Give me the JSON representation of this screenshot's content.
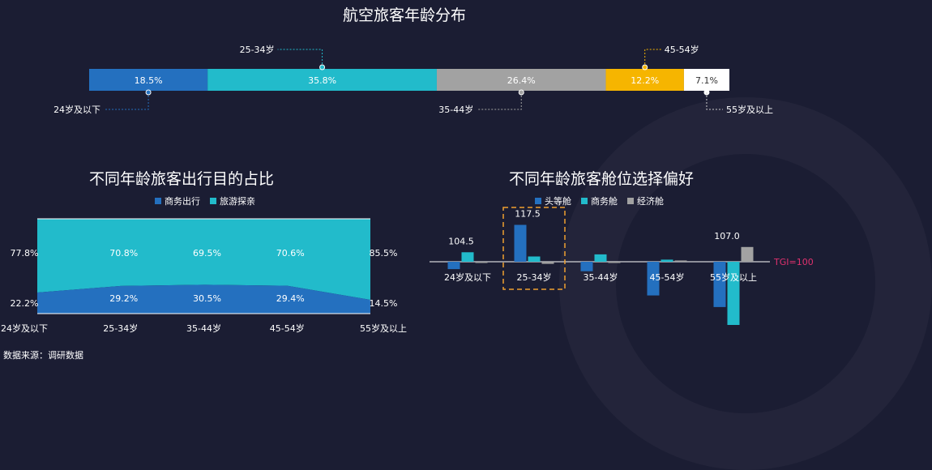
{
  "colors": {
    "blue": "#2470bf",
    "teal": "#22bbcb",
    "gray": "#a2a2a2",
    "yellow": "#f6b500",
    "white": "#ffffff",
    "tgi_line": "#e0316e",
    "highlight": "#f0a030"
  },
  "page": {
    "title": "航空旅客年龄分布",
    "source": "数据来源：调研数据"
  },
  "chart_data": [
    {
      "type": "bar",
      "title": "航空旅客年龄分布",
      "stacked": true,
      "orientation": "horizontal",
      "categories": [
        "24岁及以下",
        "25-34岁",
        "35-44岁",
        "45-54岁",
        "55岁及以上"
      ],
      "values": [
        18.5,
        35.8,
        26.4,
        12.2,
        7.1
      ],
      "value_labels": [
        "18.5%",
        "35.8%",
        "26.4%",
        "12.2%",
        "7.1%"
      ],
      "label_positions": [
        "bottom",
        "top",
        "bottom",
        "top",
        "bottom"
      ]
    },
    {
      "type": "area",
      "title": "不同年龄旅客出行目的占比",
      "stacked": true,
      "categories": [
        "24岁及以下",
        "25-34岁",
        "35-44岁",
        "45-54岁",
        "55岁及以上"
      ],
      "ylim": [
        0,
        100
      ],
      "series": [
        {
          "name": "商务出行",
          "values": [
            22.2,
            29.2,
            30.5,
            29.4,
            14.5
          ],
          "labels": [
            "22.2%",
            "29.2%",
            "30.5%",
            "29.4%",
            "14.5%"
          ]
        },
        {
          "name": "旅游探亲",
          "values": [
            77.8,
            70.8,
            69.5,
            70.6,
            85.5
          ],
          "labels": [
            "77.8%",
            "70.8%",
            "69.5%",
            "70.6%",
            "85.5%"
          ]
        }
      ],
      "legend": "top"
    },
    {
      "type": "bar",
      "title": "不同年龄旅客舱位选择偏好",
      "categories": [
        "24岁及以下",
        "25-34岁",
        "35-44岁",
        "45-54岁",
        "55岁及以上"
      ],
      "baseline": 100,
      "baseline_label": "TGI=100",
      "ylim": [
        63,
        122
      ],
      "series": [
        {
          "name": "头等舱",
          "values": [
            96.5,
            117.5,
            95.5,
            84.0,
            78.5
          ]
        },
        {
          "name": "商务舱",
          "values": [
            104.5,
            102.5,
            103.5,
            101.0,
            70.0
          ]
        },
        {
          "name": "经济舱",
          "values": [
            99.5,
            99.0,
            99.8,
            100.6,
            107.0
          ]
        }
      ],
      "data_labels": [
        {
          "category": "24岁及以下",
          "text": "104.5"
        },
        {
          "category": "25-34岁",
          "text": "117.5"
        },
        {
          "category": "55岁及以上",
          "text": "107.0"
        }
      ],
      "highlight_category": "25-34岁",
      "legend": "top"
    }
  ]
}
